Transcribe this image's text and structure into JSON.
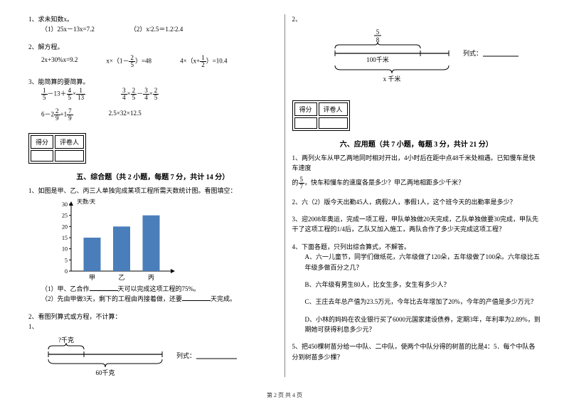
{
  "left": {
    "q1": {
      "title": "1、求未知数x。",
      "a": "（1）25x－13x=7.2",
      "b": "（2）x∶2.5＝1.2∶2.4"
    },
    "q2": {
      "title": "2、解方程。",
      "eq1": "2x+30%x=9.2",
      "eq2_pre": "x×（1－",
      "eq2_frac_n": "2",
      "eq2_frac_d": "5",
      "eq2_post": "）=48",
      "eq3_pre": "4×（x+",
      "eq3_frac_n": "1",
      "eq3_frac_d": "2",
      "eq3_post": "）=10.4"
    },
    "q3": {
      "title": "3、能简算的要简算。",
      "r1a_a_n": "1",
      "r1a_a_d": "5",
      "r1a_mid": "－13＋",
      "r1a_b_n": "4",
      "r1a_b_d": "5",
      "r1a_mid2": "×",
      "r1a_c_n": "1",
      "r1a_c_d": "13",
      "r1b_a_n": "3",
      "r1b_a_d": "4",
      "r1b_mid": "×",
      "r1b_b_n": "2",
      "r1b_b_d": "5",
      "r1b_mid2": "－",
      "r1b_c_n": "3",
      "r1b_c_d": "4",
      "r1b_mid3": "×",
      "r1b_d_n": "2",
      "r1b_d_d": "5",
      "r2a_pre": "6－2",
      "r2a_a_n": "2",
      "r2a_a_d": "9",
      "r2a_mid": "+1",
      "r2a_b_n": "7",
      "r2a_b_d": "9",
      "r2b": "2.5×32×12.5"
    },
    "score": {
      "c1": "得分",
      "c2": "评卷人"
    },
    "sec5_title": "五、综合题（共 2 小题，每题 7 分，共计 14 分）",
    "q5_1": {
      "title": "1、如图是甲、乙、丙三人单独完成某项工程所需天数统计图。看图填空：",
      "chart": {
        "ylabel": "天数/天",
        "yticks": [
          "30",
          "25",
          "20",
          "15",
          "10",
          "5",
          "0"
        ],
        "xlabels": [
          "甲",
          "乙",
          "丙"
        ],
        "values": [
          15,
          20,
          25
        ],
        "bar_color": "#4a7ebb",
        "axis_color": "#000000",
        "grid_color": "#cccccc",
        "bg": "#ffffff"
      },
      "sub1_a": "（1）甲、乙合作",
      "sub1_b": "天可以完成这项工程的75%。",
      "sub2_a": "（2）先由甲做3天，剩下的工程由丙接着做，还要",
      "sub2_b": "天完成。"
    },
    "q5_2": {
      "title": "2、看图列算式或方程，不计算：",
      "num": "1、",
      "diagram": {
        "top_label": "?千克",
        "bottom_label": "60千克",
        "formula_label": "列式：",
        "color": "#000000"
      }
    }
  },
  "right": {
    "q2_top": {
      "num": "2、",
      "diagram": {
        "frac_n": "5",
        "frac_d": "8",
        "mid_label": "100千米",
        "bottom_label": "x 千米",
        "formula_label": "列式：",
        "color": "#000000"
      }
    },
    "score": {
      "c1": "得分",
      "c2": "评卷人"
    },
    "sec6_title": "六、应用题（共 7 小题，每题 3 分，共计 21 分）",
    "q1": {
      "line1": "1、两列火车从甲乙两地同时相对开出，4小时后在距中点48千米处相遇。已知慢车是快车速度",
      "frac_n": "5",
      "frac_d": "7",
      "line2_pre": "的",
      "line2_post": "，快车和慢车的速度各是多少？甲乙两地相距多少千米？"
    },
    "q2": "2、六（2）版今天出勤45人，病假2人，事假1人，这个班今天的出勤率是多少？",
    "q3": "3、迎2008年奥运，完成一项工程，甲队单独做20天完成，乙队单独做要30完成，甲队先干了这项工程的1/4后，乙队又加入施工，两队合作了多少天完成这项工程？",
    "q4": {
      "title": "4、下面各题，只列出综合算式，不解答。",
      "a": "A、六一儿童节，同学们做纸花，六年级做了120朵，五年级做了100朵。六年级比五年级多做百分之几？",
      "b": "B、六年级有男生80人，比女生多，女生有多少人？",
      "c": "C、王庄去年总产值为23.5万元，今年比去年增加了20%，今年的产值是多少万元？",
      "d": "D、小林的妈妈在农业银行买了6000元国家建设债券，定期3年，年利率为2.89%，到期她可获得利息多少元？"
    },
    "q5": "5、把450棵树苗分给一中队、二中队，使两个中队分得的树苗的比是4：5．每个中队各分到树苗多少棵？"
  },
  "footer": "第 2 页 共 4 页"
}
